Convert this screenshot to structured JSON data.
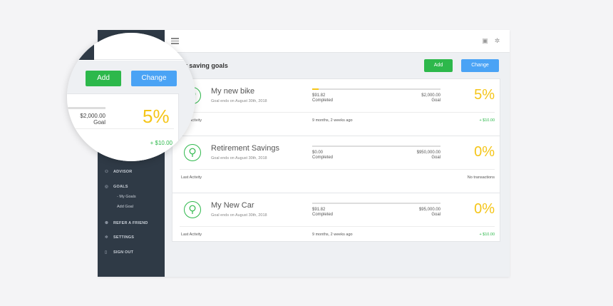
{
  "topbar": {
    "calendar_icon": "calendar-icon",
    "settings_icon": "gear-icon"
  },
  "page": {
    "title": "Your saving goals",
    "add_label": "Add",
    "change_label": "Change"
  },
  "sidebar": {
    "items": [
      {
        "label": "ADVISOR",
        "icon": "advisor-icon"
      },
      {
        "label": "GOALS",
        "icon": "goals-icon",
        "children": [
          "- My Goals",
          "Add Goal"
        ]
      },
      {
        "label": "REFER A FRIEND",
        "icon": "friends-icon"
      },
      {
        "label": "SETTINGS",
        "icon": "gear-icon"
      },
      {
        "label": "SIGN OUT",
        "icon": "door-icon"
      }
    ]
  },
  "goals": [
    {
      "name": "My new bike",
      "ends": "Goal ends on August 30th, 2018",
      "completed_amount": "$91.82",
      "completed_label": "Completed",
      "goal_amount": "$2,000.00",
      "goal_label": "Goal",
      "percent": "5%",
      "progress": 0.05,
      "activity_label": "Last Activity",
      "activity_when": "9 months, 2 weeks ago",
      "activity_value": "+ $10.00"
    },
    {
      "name": "Retirement Savings",
      "ends": "Goal ends on August 30th, 2018",
      "completed_amount": "$0.00",
      "completed_label": "Completed",
      "goal_amount": "$950,000.00",
      "goal_label": "Goal",
      "percent": "0%",
      "progress": 0.0,
      "activity_label": "Last Activity",
      "activity_when": "",
      "activity_value": "No transactions"
    },
    {
      "name": "My New Car",
      "ends": "Goal ends on August 30th, 2018",
      "completed_amount": "$91.82",
      "completed_label": "Completed",
      "goal_amount": "$95,000.00",
      "goal_label": "Goal",
      "percent": "0%",
      "progress": 0.0,
      "activity_label": "Last Activity",
      "activity_when": "9 months, 2 weeks ago",
      "activity_value": "+ $10.00"
    }
  ],
  "magnifier": {
    "add_label": "Add",
    "change_label": "Change",
    "goal_amount": "$2,000.00",
    "goal_label": "Goal",
    "percent": "5%",
    "activity_value": "+ $10.00"
  },
  "colors": {
    "green": "#2db84b",
    "blue": "#4aa3f5",
    "yellow": "#f5c518",
    "sidebar": "#2f3a46"
  }
}
